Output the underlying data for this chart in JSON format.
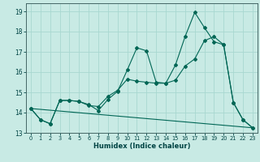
{
  "xlabel": "Humidex (Indice chaleur)",
  "background_color": "#c8eae4",
  "line_color": "#006655",
  "grid_color": "#a8d8d0",
  "xlim": [
    -0.5,
    23.5
  ],
  "ylim": [
    13.0,
    19.4
  ],
  "yticks": [
    13,
    14,
    15,
    16,
    17,
    18,
    19
  ],
  "xticks": [
    0,
    1,
    2,
    3,
    4,
    5,
    6,
    7,
    8,
    9,
    10,
    11,
    12,
    13,
    14,
    15,
    16,
    17,
    18,
    19,
    20,
    21,
    22,
    23
  ],
  "series1_x": [
    0,
    1,
    2,
    3,
    4,
    5,
    6,
    7,
    8,
    9,
    10,
    11,
    12,
    13,
    14,
    15,
    16,
    17,
    18,
    19,
    20,
    21,
    22,
    23
  ],
  "series1_y": [
    14.2,
    13.65,
    13.45,
    14.6,
    14.6,
    14.55,
    14.4,
    14.1,
    14.65,
    15.05,
    16.1,
    17.2,
    17.05,
    15.5,
    15.45,
    16.35,
    17.75,
    18.95,
    18.2,
    17.5,
    17.35,
    14.5,
    13.65,
    13.25
  ],
  "series2_x": [
    0,
    1,
    2,
    3,
    4,
    5,
    6,
    7,
    8,
    9,
    10,
    11,
    12,
    13,
    14,
    15,
    16,
    17,
    18,
    19,
    20,
    21,
    22,
    23
  ],
  "series2_y": [
    14.2,
    13.65,
    13.45,
    14.6,
    14.6,
    14.55,
    14.35,
    14.3,
    14.8,
    15.1,
    15.65,
    15.55,
    15.5,
    15.45,
    15.45,
    15.6,
    16.3,
    16.65,
    17.55,
    17.75,
    17.35,
    14.5,
    13.65,
    13.25
  ],
  "series3_x": [
    0,
    23
  ],
  "series3_y": [
    14.2,
    13.25
  ]
}
